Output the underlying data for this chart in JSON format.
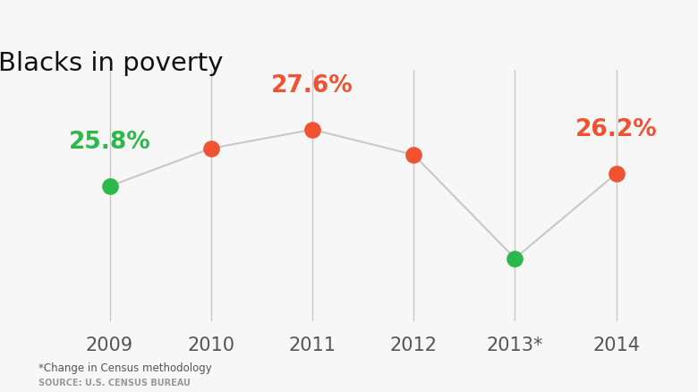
{
  "title": "Blacks in poverty",
  "years": [
    "2009",
    "2010",
    "2011",
    "2012",
    "2013*",
    "2014"
  ],
  "x_values": [
    0,
    1,
    2,
    3,
    4,
    5
  ],
  "y_values": [
    25.8,
    27.0,
    27.6,
    26.8,
    23.5,
    26.2
  ],
  "point_colors": [
    "#2db84b",
    "#f05232",
    "#f05232",
    "#f05232",
    "#2db84b",
    "#f05232"
  ],
  "label_colors": [
    "#2db84b",
    null,
    "#f05232",
    null,
    null,
    "#f05232"
  ],
  "labels": [
    "25.8%",
    null,
    "27.6%",
    null,
    null,
    "26.2%"
  ],
  "label_above": [
    false,
    null,
    true,
    null,
    null,
    true
  ],
  "line_color": "#c8c8c8",
  "vline_color": "#c8c8c8",
  "bg_color": "#f7f7f7",
  "title_fontsize": 21,
  "label_fontsize": 19,
  "tick_fontsize": 15,
  "note1": "*Change in Census methodology",
  "note2": "SOURCE: U.S. CENSUS BUREAU",
  "ylim": [
    21.5,
    29.5
  ],
  "marker_size": 180
}
